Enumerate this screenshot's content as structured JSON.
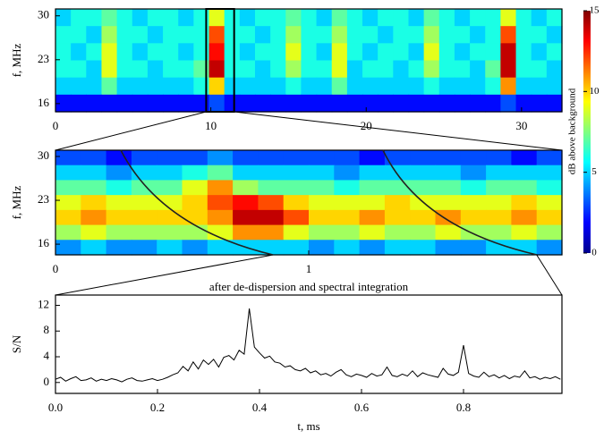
{
  "chart_data": [
    {
      "type": "heatmap",
      "ylabel": "f, MHz",
      "xlim": [
        0,
        32.6
      ],
      "ylim": [
        14.7,
        31.1
      ],
      "xticks": [
        0,
        10,
        20,
        30
      ],
      "yticks": [
        16,
        23,
        30
      ],
      "zoom_range": [
        9.7,
        11.5
      ],
      "colorbar": {
        "label": "dB above background",
        "lim": [
          0,
          15
        ],
        "ticks": [
          0,
          5,
          10,
          15
        ]
      },
      "z": [
        [
          5,
          6,
          6,
          7,
          6,
          5,
          6,
          6,
          5,
          6,
          9,
          6,
          5,
          6,
          6,
          7,
          6,
          5,
          7,
          6,
          5,
          6,
          6,
          5,
          7,
          6,
          5,
          6,
          6,
          9,
          6,
          5,
          6
        ],
        [
          6,
          6,
          5,
          8,
          6,
          6,
          5,
          6,
          6,
          6,
          12,
          6,
          6,
          5,
          6,
          8,
          6,
          6,
          8,
          6,
          6,
          5,
          6,
          6,
          8,
          6,
          6,
          5,
          6,
          12,
          6,
          6,
          5
        ],
        [
          6,
          5,
          6,
          9,
          6,
          5,
          6,
          6,
          5,
          6,
          13,
          6,
          5,
          6,
          6,
          9,
          6,
          5,
          9,
          6,
          5,
          6,
          6,
          5,
          9,
          6,
          5,
          6,
          6,
          14,
          6,
          5,
          6
        ],
        [
          6,
          6,
          5,
          9,
          6,
          6,
          5,
          6,
          6,
          7,
          14,
          6,
          6,
          5,
          6,
          8,
          6,
          6,
          9,
          5,
          6,
          6,
          5,
          6,
          8,
          6,
          6,
          5,
          7,
          14,
          6,
          6,
          5
        ],
        [
          5,
          5,
          5,
          7,
          5,
          5,
          5,
          5,
          5,
          6,
          10,
          5,
          5,
          5,
          5,
          6,
          5,
          5,
          7,
          5,
          5,
          5,
          5,
          5,
          6,
          5,
          5,
          5,
          6,
          11,
          5,
          5,
          5
        ],
        [
          2,
          2,
          2,
          2,
          2,
          2,
          2,
          2,
          2,
          2,
          3,
          2,
          2,
          2,
          2,
          2,
          2,
          2,
          2,
          2,
          2,
          2,
          2,
          2,
          2,
          2,
          2,
          2,
          2,
          3,
          2,
          2,
          2
        ]
      ]
    },
    {
      "type": "heatmap",
      "ylabel": "f, MHz",
      "annotation": "after de-dispersion and spectral integration",
      "xlim": [
        0,
        2
      ],
      "ylim": [
        14.3,
        31
      ],
      "xticks": [
        0,
        1
      ],
      "yticks": [
        16,
        23,
        30
      ],
      "zoom_range": [
        0.86,
        1.9
      ],
      "z": [
        [
          3,
          3,
          2,
          3,
          3,
          3,
          4,
          3,
          3,
          3,
          3,
          3,
          2,
          3,
          3,
          3,
          3,
          3,
          2,
          3
        ],
        [
          5,
          5,
          4,
          5,
          5,
          6,
          7,
          5,
          5,
          5,
          5,
          4,
          5,
          5,
          5,
          5,
          4,
          5,
          5,
          5
        ],
        [
          7,
          7,
          6,
          7,
          7,
          9,
          11,
          8,
          7,
          7,
          7,
          6,
          7,
          7,
          7,
          7,
          6,
          7,
          7,
          6
        ],
        [
          9,
          10,
          9,
          9,
          9,
          10,
          12,
          13,
          12,
          10,
          9,
          9,
          9,
          10,
          9,
          9,
          9,
          9,
          10,
          9
        ],
        [
          10,
          11,
          10,
          10,
          10,
          10,
          11,
          14,
          14,
          12,
          10,
          10,
          11,
          10,
          10,
          11,
          10,
          10,
          11,
          10
        ],
        [
          8,
          9,
          8,
          8,
          8,
          8,
          9,
          11,
          11,
          9,
          8,
          8,
          9,
          8,
          8,
          9,
          8,
          8,
          9,
          8
        ],
        [
          4,
          5,
          4,
          4,
          5,
          4,
          5,
          5,
          5,
          5,
          4,
          5,
          4,
          5,
          5,
          4,
          4,
          5,
          5,
          4
        ]
      ]
    },
    {
      "type": "line",
      "xlabel": "t, ms",
      "ylabel": "S/N",
      "color": "#000000",
      "xlim": [
        0,
        0.993
      ],
      "ylim": [
        -1.7,
        13.6
      ],
      "xticks": [
        {
          "value": 0,
          "label": "0.0"
        },
        0.2,
        0.4,
        0.6,
        0.8
      ],
      "yticks": [
        0,
        4,
        8,
        12
      ],
      "x": [
        0,
        0.01,
        0.02,
        0.03,
        0.04,
        0.05,
        0.06,
        0.07,
        0.08,
        0.09,
        0.1,
        0.11,
        0.12,
        0.13,
        0.14,
        0.15,
        0.16,
        0.17,
        0.18,
        0.19,
        0.2,
        0.21,
        0.22,
        0.23,
        0.24,
        0.25,
        0.26,
        0.27,
        0.28,
        0.29,
        0.3,
        0.31,
        0.32,
        0.33,
        0.34,
        0.35,
        0.36,
        0.37,
        0.38,
        0.39,
        0.4,
        0.41,
        0.42,
        0.43,
        0.44,
        0.45,
        0.46,
        0.47,
        0.48,
        0.49,
        0.5,
        0.51,
        0.52,
        0.53,
        0.54,
        0.55,
        0.56,
        0.57,
        0.58,
        0.59,
        0.6,
        0.61,
        0.62,
        0.63,
        0.64,
        0.65,
        0.66,
        0.67,
        0.68,
        0.69,
        0.7,
        0.71,
        0.72,
        0.73,
        0.74,
        0.75,
        0.76,
        0.77,
        0.78,
        0.79,
        0.8,
        0.81,
        0.82,
        0.83,
        0.84,
        0.85,
        0.86,
        0.87,
        0.88,
        0.89,
        0.9,
        0.91,
        0.92,
        0.93,
        0.94,
        0.95,
        0.96,
        0.97,
        0.98,
        0.99
      ],
      "values": [
        0.5,
        0.8,
        0.2,
        0.6,
        0.9,
        0.3,
        0.4,
        0.7,
        0.2,
        0.5,
        0.3,
        0.6,
        0.4,
        0.1,
        0.5,
        0.7,
        0.3,
        0.2,
        0.4,
        0.6,
        0.3,
        0.5,
        0.8,
        1.2,
        1.5,
        2.5,
        1.8,
        3.2,
        2.1,
        3.5,
        2.8,
        3.6,
        2.4,
        3.9,
        4.2,
        3.5,
        5.0,
        4.4,
        11.5,
        5.5,
        4.6,
        3.8,
        4.1,
        3.2,
        3.0,
        2.4,
        2.6,
        2.0,
        1.8,
        2.2,
        1.5,
        1.8,
        1.2,
        1.4,
        1.0,
        1.6,
        2.0,
        1.2,
        0.9,
        1.3,
        1.1,
        0.8,
        1.4,
        1.0,
        1.2,
        2.4,
        1.1,
        0.9,
        1.3,
        1.0,
        1.8,
        0.9,
        1.5,
        1.2,
        1.0,
        0.8,
        2.2,
        1.3,
        1.1,
        1.6,
        5.8,
        1.4,
        1.0,
        0.8,
        1.6,
        0.9,
        1.2,
        0.7,
        1.1,
        0.6,
        1.0,
        0.8,
        1.8,
        0.7,
        0.9,
        0.5,
        0.8,
        0.6,
        0.9,
        0.5
      ]
    }
  ]
}
